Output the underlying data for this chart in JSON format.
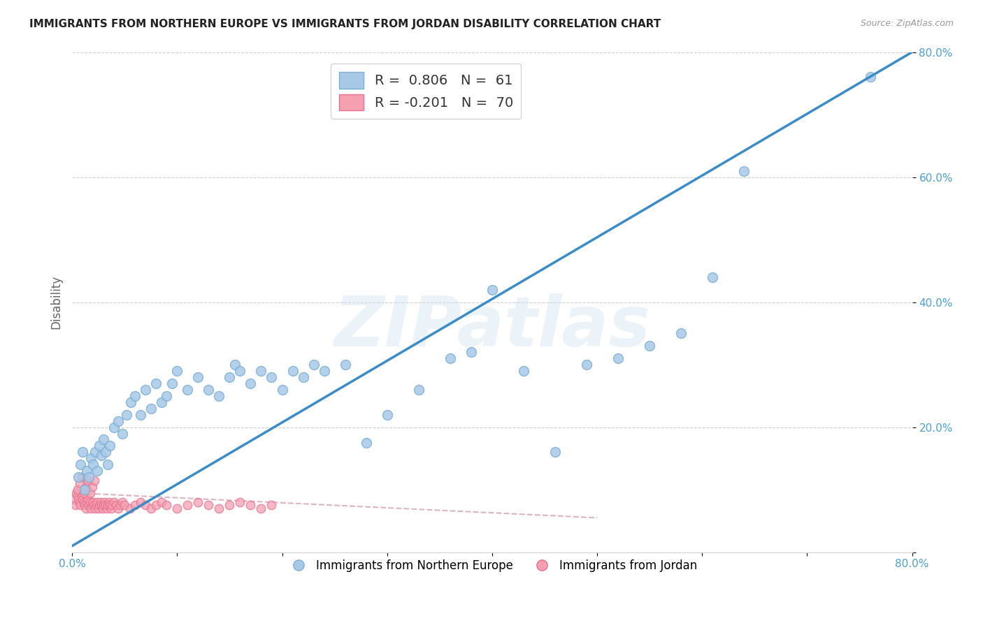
{
  "title": "IMMIGRANTS FROM NORTHERN EUROPE VS IMMIGRANTS FROM JORDAN DISABILITY CORRELATION CHART",
  "source": "Source: ZipAtlas.com",
  "ylabel": "Disability",
  "xlim": [
    0,
    0.8
  ],
  "ylim": [
    0,
    0.8
  ],
  "xticks": [
    0.0,
    0.1,
    0.2,
    0.3,
    0.4,
    0.5,
    0.6,
    0.7,
    0.8
  ],
  "yticks": [
    0.0,
    0.2,
    0.4,
    0.6,
    0.8
  ],
  "blue_R": 0.806,
  "blue_N": 61,
  "pink_R": -0.201,
  "pink_N": 70,
  "blue_color": "#a8c8e8",
  "blue_edge_color": "#7aafd4",
  "pink_color": "#f4a0b0",
  "pink_edge_color": "#e87090",
  "blue_line_color": "#3a8cc8",
  "pink_line_color": "#d4a0b0",
  "blue_scatter_x": [
    0.006,
    0.008,
    0.01,
    0.012,
    0.014,
    0.016,
    0.018,
    0.02,
    0.022,
    0.024,
    0.026,
    0.028,
    0.03,
    0.032,
    0.034,
    0.036,
    0.04,
    0.044,
    0.048,
    0.052,
    0.056,
    0.06,
    0.065,
    0.07,
    0.075,
    0.08,
    0.085,
    0.09,
    0.095,
    0.1,
    0.11,
    0.12,
    0.13,
    0.14,
    0.15,
    0.155,
    0.16,
    0.17,
    0.18,
    0.19,
    0.2,
    0.21,
    0.22,
    0.23,
    0.24,
    0.26,
    0.28,
    0.3,
    0.33,
    0.36,
    0.38,
    0.4,
    0.43,
    0.46,
    0.49,
    0.52,
    0.55,
    0.58,
    0.61,
    0.64,
    0.76
  ],
  "blue_scatter_y": [
    0.12,
    0.14,
    0.16,
    0.1,
    0.13,
    0.12,
    0.15,
    0.14,
    0.16,
    0.13,
    0.17,
    0.155,
    0.18,
    0.16,
    0.14,
    0.17,
    0.2,
    0.21,
    0.19,
    0.22,
    0.24,
    0.25,
    0.22,
    0.26,
    0.23,
    0.27,
    0.24,
    0.25,
    0.27,
    0.29,
    0.26,
    0.28,
    0.26,
    0.25,
    0.28,
    0.3,
    0.29,
    0.27,
    0.29,
    0.28,
    0.26,
    0.29,
    0.28,
    0.3,
    0.29,
    0.3,
    0.175,
    0.22,
    0.26,
    0.31,
    0.32,
    0.42,
    0.29,
    0.16,
    0.3,
    0.31,
    0.33,
    0.35,
    0.44,
    0.61,
    0.76
  ],
  "pink_scatter_x": [
    0.002,
    0.003,
    0.004,
    0.005,
    0.006,
    0.007,
    0.008,
    0.009,
    0.01,
    0.011,
    0.012,
    0.013,
    0.014,
    0.015,
    0.016,
    0.017,
    0.018,
    0.019,
    0.02,
    0.021,
    0.022,
    0.023,
    0.024,
    0.025,
    0.026,
    0.027,
    0.028,
    0.029,
    0.03,
    0.031,
    0.032,
    0.033,
    0.034,
    0.035,
    0.036,
    0.037,
    0.038,
    0.04,
    0.042,
    0.044,
    0.046,
    0.048,
    0.05,
    0.055,
    0.06,
    0.065,
    0.07,
    0.075,
    0.08,
    0.085,
    0.09,
    0.1,
    0.11,
    0.12,
    0.13,
    0.14,
    0.15,
    0.16,
    0.17,
    0.18,
    0.19,
    0.005,
    0.007,
    0.009,
    0.011,
    0.013,
    0.015,
    0.017,
    0.019,
    0.021
  ],
  "pink_scatter_y": [
    0.085,
    0.075,
    0.095,
    0.09,
    0.085,
    0.08,
    0.075,
    0.09,
    0.085,
    0.08,
    0.075,
    0.07,
    0.08,
    0.085,
    0.075,
    0.08,
    0.07,
    0.075,
    0.08,
    0.075,
    0.07,
    0.075,
    0.08,
    0.07,
    0.075,
    0.08,
    0.075,
    0.07,
    0.075,
    0.08,
    0.075,
    0.07,
    0.075,
    0.08,
    0.075,
    0.07,
    0.075,
    0.08,
    0.075,
    0.07,
    0.075,
    0.08,
    0.075,
    0.07,
    0.075,
    0.08,
    0.075,
    0.07,
    0.075,
    0.08,
    0.075,
    0.07,
    0.075,
    0.08,
    0.075,
    0.07,
    0.075,
    0.08,
    0.075,
    0.07,
    0.075,
    0.1,
    0.11,
    0.12,
    0.095,
    0.105,
    0.115,
    0.095,
    0.105,
    0.115
  ],
  "blue_line_x0": 0.0,
  "blue_line_y0": 0.01,
  "blue_line_x1": 0.8,
  "blue_line_y1": 0.8,
  "pink_line_x0": 0.0,
  "pink_line_y0": 0.095,
  "pink_line_x1": 0.5,
  "pink_line_y1": 0.055,
  "background_color": "#ffffff",
  "grid_color": "#d0d0d0",
  "watermark": "ZIPatlas",
  "legend_label_blue": "Immigrants from Northern Europe",
  "legend_label_pink": "Immigrants from Jordan",
  "title_fontsize": 11,
  "axis_tick_color": "#4a9fd4",
  "ylabel_color": "#666666"
}
